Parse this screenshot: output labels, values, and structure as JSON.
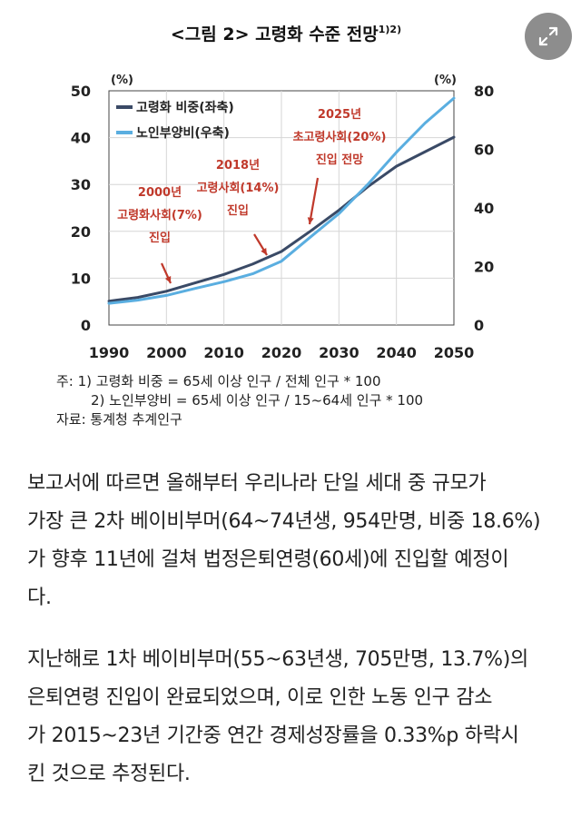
{
  "chart_data": {
    "type": "line",
    "title": "<그림 2> 고령화 수준 전망",
    "title_sup": "1)2)",
    "left_unit": "(%)",
    "right_unit": "(%)",
    "x_ticks": [
      1990,
      2000,
      2010,
      2020,
      2030,
      2040,
      2050
    ],
    "xlim": [
      1990,
      2050
    ],
    "ylim_left": [
      0,
      50
    ],
    "ylim_right": [
      0,
      80
    ],
    "left_ticks": [
      0,
      10,
      20,
      30,
      40,
      50
    ],
    "right_ticks": [
      0,
      20,
      40,
      60,
      80
    ],
    "series": [
      {
        "name": "고령화 비중(좌축)",
        "axis": "left",
        "color": "#3a4a66",
        "x": [
          1990,
          1995,
          2000,
          2005,
          2010,
          2015,
          2020,
          2025,
          2030,
          2035,
          2040,
          2045,
          2050
        ],
        "y": [
          5.1,
          5.9,
          7.2,
          9.0,
          10.8,
          13.0,
          15.7,
          20.0,
          24.5,
          29.5,
          33.9,
          37.0,
          40.1
        ]
      },
      {
        "name": "노인부양비(우축)",
        "axis": "right",
        "color": "#5aaee0",
        "x": [
          1990,
          1995,
          2000,
          2005,
          2010,
          2015,
          2020,
          2025,
          2030,
          2035,
          2040,
          2045,
          2050
        ],
        "y": [
          7.4,
          8.5,
          10.1,
          12.5,
          14.8,
          17.5,
          21.8,
          30.0,
          38.0,
          48.0,
          59.0,
          69.0,
          77.5
        ]
      }
    ],
    "annotations": [
      {
        "lines": [
          "2000년",
          "고령화사회(7%)",
          "진입"
        ]
      },
      {
        "lines": [
          "2018년",
          "고령사회(14%)",
          "진입"
        ]
      },
      {
        "lines": [
          "2025년",
          "초고령사회(20%)",
          "진입 전망"
        ]
      }
    ]
  },
  "notes": {
    "note1": "주:  1)  고령화 비중 = 65세 이상 인구 / 전체 인구 * 100",
    "note2": "2)  노인부양비 = 65세 이상 인구 / 15~64세 인구 * 100",
    "source": "자료:  통계청  추계인구"
  },
  "article": {
    "paragraphs": [
      [
        "보고서에 따르면 올해부터 우리나라 단일 세대 중 규모가",
        "가장 큰 2차 베이비부머(64~74년생, 954만명, 비중 18.6%)",
        "가 향후 11년에 걸쳐 법정은퇴연령(60세)에 진입할 예정이",
        "다."
      ],
      [
        "지난해로 1차 베이비부머(55~63년생, 705만명, 13.7%)의",
        "은퇴연령 진입이 완료되었으며, 이로 인한 노동 인구 감소",
        "가 2015~23년 기간중 연간 경제성장률을 0.33%p 하락시",
        "킨 것으로 추정된다."
      ]
    ]
  },
  "ui": {
    "expand_icon": "expand-icon"
  }
}
